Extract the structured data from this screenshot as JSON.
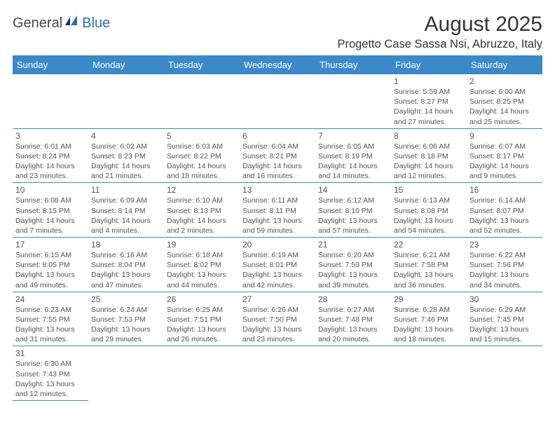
{
  "logo": {
    "part1": "General",
    "part2": "Blue"
  },
  "title": "August 2025",
  "location": "Progetto Case Sassa Nsi, Abruzzo, Italy",
  "colors": {
    "header_bg": "#3b89c9",
    "header_text": "#ffffff",
    "cell_border": "#3b89c9",
    "text": "#555555",
    "logo_accent": "#2a6fb5"
  },
  "days_of_week": [
    "Sunday",
    "Monday",
    "Tuesday",
    "Wednesday",
    "Thursday",
    "Friday",
    "Saturday"
  ],
  "weeks": [
    [
      null,
      null,
      null,
      null,
      null,
      {
        "n": "1",
        "sr": "5:59 AM",
        "ss": "8:27 PM",
        "dl": "14 hours and 27 minutes."
      },
      {
        "n": "2",
        "sr": "6:00 AM",
        "ss": "8:25 PM",
        "dl": "14 hours and 25 minutes."
      }
    ],
    [
      {
        "n": "3",
        "sr": "6:01 AM",
        "ss": "8:24 PM",
        "dl": "14 hours and 23 minutes."
      },
      {
        "n": "4",
        "sr": "6:02 AM",
        "ss": "8:23 PM",
        "dl": "14 hours and 21 minutes."
      },
      {
        "n": "5",
        "sr": "6:03 AM",
        "ss": "8:22 PM",
        "dl": "14 hours and 18 minutes."
      },
      {
        "n": "6",
        "sr": "6:04 AM",
        "ss": "8:21 PM",
        "dl": "14 hours and 16 minutes."
      },
      {
        "n": "7",
        "sr": "6:05 AM",
        "ss": "8:19 PM",
        "dl": "14 hours and 14 minutes."
      },
      {
        "n": "8",
        "sr": "6:06 AM",
        "ss": "8:18 PM",
        "dl": "14 hours and 12 minutes."
      },
      {
        "n": "9",
        "sr": "6:07 AM",
        "ss": "8:17 PM",
        "dl": "14 hours and 9 minutes."
      }
    ],
    [
      {
        "n": "10",
        "sr": "6:08 AM",
        "ss": "8:15 PM",
        "dl": "14 hours and 7 minutes."
      },
      {
        "n": "11",
        "sr": "6:09 AM",
        "ss": "8:14 PM",
        "dl": "14 hours and 4 minutes."
      },
      {
        "n": "12",
        "sr": "6:10 AM",
        "ss": "8:13 PM",
        "dl": "14 hours and 2 minutes."
      },
      {
        "n": "13",
        "sr": "6:11 AM",
        "ss": "8:11 PM",
        "dl": "13 hours and 59 minutes."
      },
      {
        "n": "14",
        "sr": "6:12 AM",
        "ss": "8:10 PM",
        "dl": "13 hours and 57 minutes."
      },
      {
        "n": "15",
        "sr": "6:13 AM",
        "ss": "8:08 PM",
        "dl": "13 hours and 54 minutes."
      },
      {
        "n": "16",
        "sr": "6:14 AM",
        "ss": "8:07 PM",
        "dl": "13 hours and 52 minutes."
      }
    ],
    [
      {
        "n": "17",
        "sr": "6:15 AM",
        "ss": "8:05 PM",
        "dl": "13 hours and 49 minutes."
      },
      {
        "n": "18",
        "sr": "6:16 AM",
        "ss": "8:04 PM",
        "dl": "13 hours and 47 minutes."
      },
      {
        "n": "19",
        "sr": "6:18 AM",
        "ss": "8:02 PM",
        "dl": "13 hours and 44 minutes."
      },
      {
        "n": "20",
        "sr": "6:19 AM",
        "ss": "8:01 PM",
        "dl": "13 hours and 42 minutes."
      },
      {
        "n": "21",
        "sr": "6:20 AM",
        "ss": "7:59 PM",
        "dl": "13 hours and 39 minutes."
      },
      {
        "n": "22",
        "sr": "6:21 AM",
        "ss": "7:58 PM",
        "dl": "13 hours and 36 minutes."
      },
      {
        "n": "23",
        "sr": "6:22 AM",
        "ss": "7:56 PM",
        "dl": "13 hours and 34 minutes."
      }
    ],
    [
      {
        "n": "24",
        "sr": "6:23 AM",
        "ss": "7:55 PM",
        "dl": "13 hours and 31 minutes."
      },
      {
        "n": "25",
        "sr": "6:24 AM",
        "ss": "7:53 PM",
        "dl": "13 hours and 29 minutes."
      },
      {
        "n": "26",
        "sr": "6:25 AM",
        "ss": "7:51 PM",
        "dl": "13 hours and 26 minutes."
      },
      {
        "n": "27",
        "sr": "6:26 AM",
        "ss": "7:50 PM",
        "dl": "13 hours and 23 minutes."
      },
      {
        "n": "28",
        "sr": "6:27 AM",
        "ss": "7:48 PM",
        "dl": "13 hours and 20 minutes."
      },
      {
        "n": "29",
        "sr": "6:28 AM",
        "ss": "7:46 PM",
        "dl": "13 hours and 18 minutes."
      },
      {
        "n": "30",
        "sr": "6:29 AM",
        "ss": "7:45 PM",
        "dl": "13 hours and 15 minutes."
      }
    ],
    [
      {
        "n": "31",
        "sr": "6:30 AM",
        "ss": "7:43 PM",
        "dl": "13 hours and 12 minutes."
      },
      null,
      null,
      null,
      null,
      null,
      null
    ]
  ],
  "labels": {
    "sunrise": "Sunrise:",
    "sunset": "Sunset:",
    "daylight": "Daylight:"
  }
}
